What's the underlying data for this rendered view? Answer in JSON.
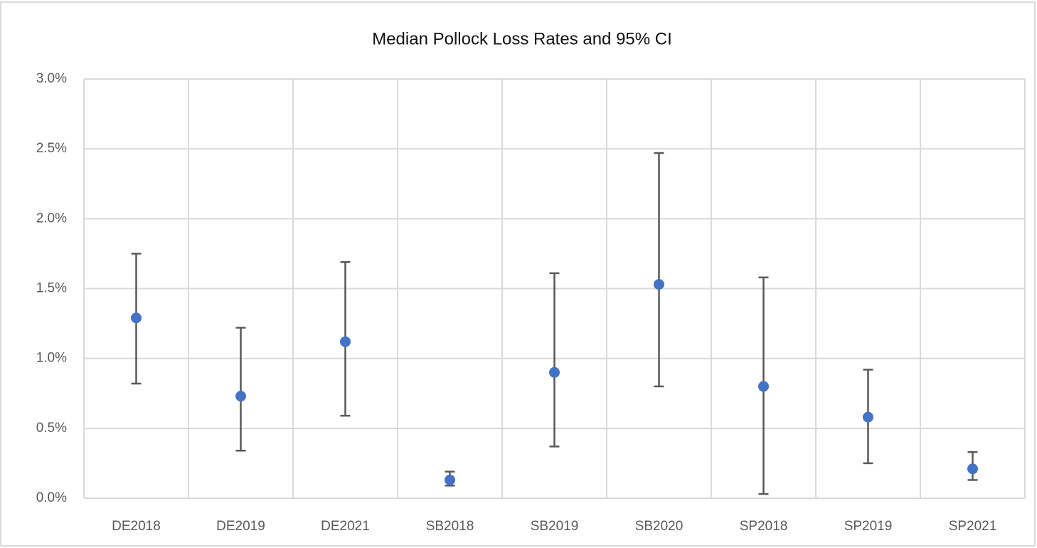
{
  "chart_data": {
    "type": "errorbar",
    "title": "Median Pollock Loss Rates and 95% CI",
    "categories": [
      "DE2018",
      "DE2019",
      "DE2021",
      "SB2018",
      "SB2019",
      "SB2020",
      "SP2018",
      "SP2019",
      "SP2021"
    ],
    "values": [
      1.29,
      0.73,
      1.12,
      0.13,
      0.9,
      1.53,
      0.8,
      0.58,
      0.21
    ],
    "lower": [
      0.82,
      0.34,
      0.59,
      0.09,
      0.37,
      0.8,
      0.03,
      0.25,
      0.13
    ],
    "upper": [
      1.75,
      1.22,
      1.69,
      0.19,
      1.61,
      2.47,
      1.58,
      0.92,
      0.33
    ],
    "color": "#4472c4",
    "error_color": "#595959",
    "ylim": [
      0,
      3
    ],
    "yticks": [
      {
        "value": 0,
        "label": "0.0%"
      },
      {
        "value": 0.5,
        "label": "0.5%"
      },
      {
        "value": 1,
        "label": "1.0%"
      },
      {
        "value": 1.5,
        "label": "1.5%"
      },
      {
        "value": 2,
        "label": "2.0%"
      },
      {
        "value": 2.5,
        "label": "2.5%"
      },
      {
        "value": 3,
        "label": "3.0%"
      }
    ],
    "grid": true
  }
}
